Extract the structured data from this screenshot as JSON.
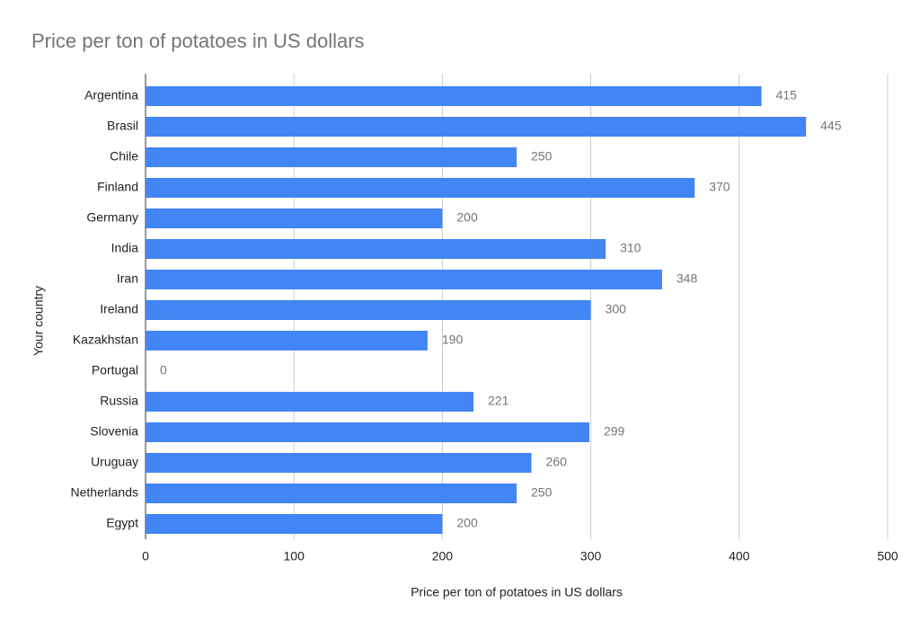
{
  "chart_data": {
    "type": "bar",
    "orientation": "horizontal",
    "title": "Price per ton of potatoes in US dollars",
    "x_label": "Price per ton of potatoes in US dollars",
    "y_label": "Your country",
    "categories": [
      "Argentina",
      "Brasil",
      "Chile",
      "Finland",
      "Germany",
      "India",
      "Iran",
      "Ireland",
      "Kazakhstan",
      "Portugal",
      "Russia",
      "Slovenia",
      "Uruguay",
      "Netherlands",
      "Egypt"
    ],
    "values": [
      415,
      445,
      250,
      370,
      200,
      310,
      348,
      300,
      190,
      0,
      221,
      299,
      260,
      250,
      200
    ],
    "color": "#4285f4",
    "xlim": [
      0,
      500
    ],
    "xticks": [
      0,
      100,
      200,
      300,
      400,
      500
    ],
    "grid": true
  }
}
